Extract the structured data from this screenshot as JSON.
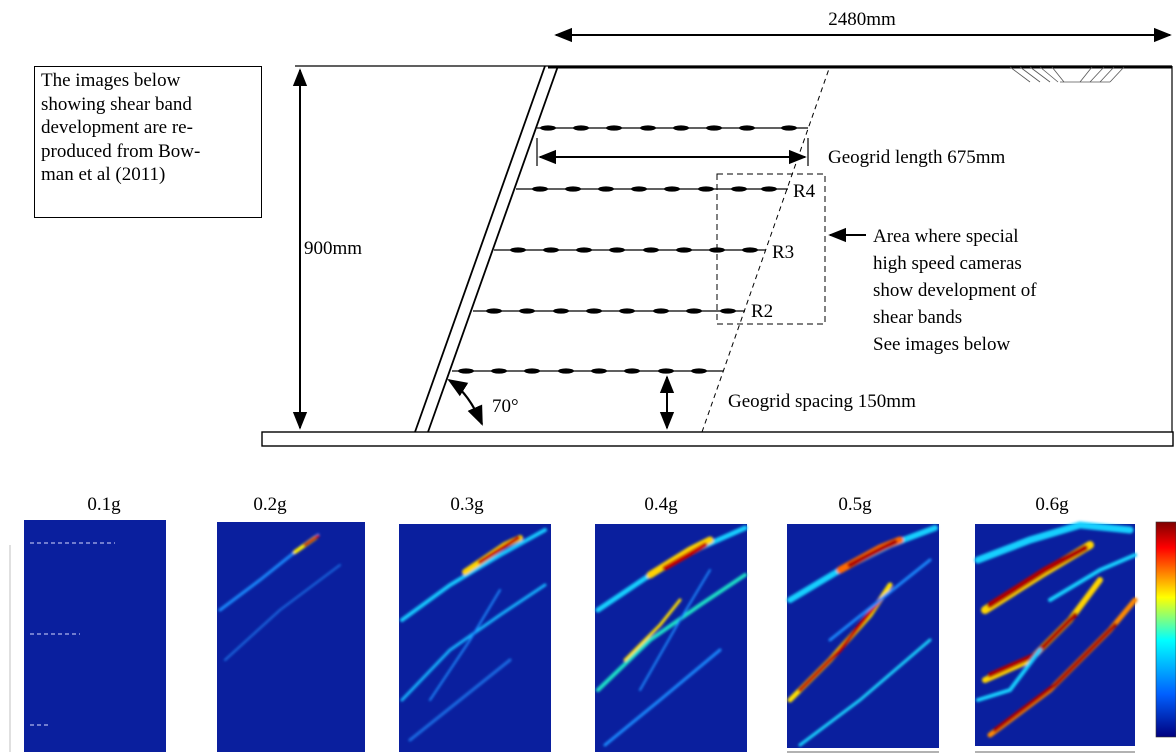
{
  "diagram": {
    "width_dim": "2480mm",
    "height_dim": "900mm",
    "geogrid_length": "Geogrid length 675mm",
    "geogrid_spacing": "Geogrid spacing 150mm",
    "angle": "70°",
    "reinforcement_labels": [
      "R4",
      "R3",
      "R2"
    ],
    "camera_note": [
      "Area where special",
      "high speed cameras",
      "show development of",
      "shear bands",
      "See images below"
    ]
  },
  "note": "The images below showing shear band development are re-produced from Bow-man et al (2011)",
  "note_lines": [
    "The images below",
    "showing shear band",
    "development are re-",
    "produced from Bow-",
    "man et al (2011)"
  ],
  "panels": [
    {
      "label": "0.1g",
      "intensity": 0.0
    },
    {
      "label": "0.2g",
      "intensity": 0.2
    },
    {
      "label": "0.3g",
      "intensity": 0.45
    },
    {
      "label": "0.4g",
      "intensity": 0.6
    },
    {
      "label": "0.5g",
      "intensity": 0.8
    },
    {
      "label": "0.6g",
      "intensity": 1.0
    }
  ],
  "colors": {
    "background_field": "#0a1f9e",
    "line": "#000000",
    "colorbar": [
      "#7f0000",
      "#ff0000",
      "#ffff00",
      "#00ffff",
      "#0000ff",
      "#00007f"
    ]
  }
}
